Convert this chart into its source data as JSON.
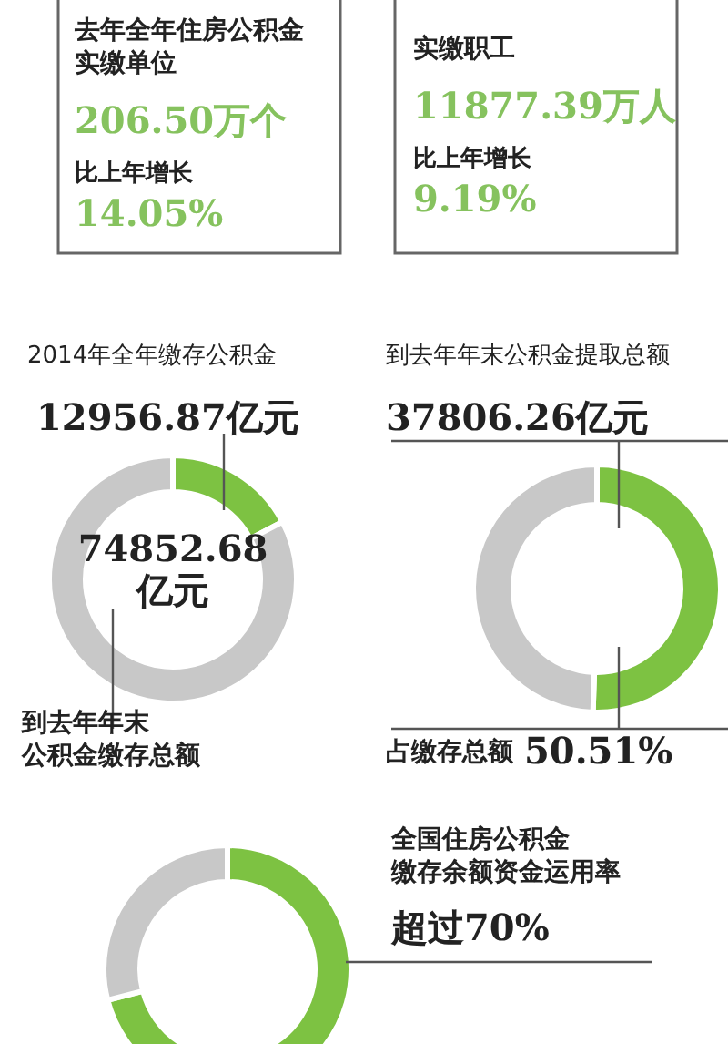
{
  "chart_data": [
    {
      "type": "other",
      "title": "去年全年住房公积金实缴单位",
      "annotations": [
        "206.50万个",
        "比上年增长",
        "14.05%"
      ]
    },
    {
      "type": "other",
      "title": "实缴职工",
      "annotations": [
        "11877.39万人",
        "比上年增长",
        "9.19%"
      ]
    },
    {
      "type": "donut",
      "title": "2014年全年缴存公积金",
      "categories": [
        null,
        null
      ],
      "values": [
        17.31,
        82.69
      ],
      "colors": [
        "#7dc242",
        "#c8c8c8"
      ],
      "annotations": [
        "12956.87亿元",
        "74852.68\n亿元",
        "到去年年末公积金缴存总额"
      ]
    },
    {
      "type": "donut",
      "title": "到去年年末公积金提取总额",
      "categories": [
        null,
        null
      ],
      "values": [
        50.51,
        49.49
      ],
      "colors": [
        "#7dc242",
        "#c8c8c8"
      ],
      "annotations": [
        "37806.26亿元",
        "占缴存总额",
        "50.51%"
      ]
    },
    {
      "type": "donut",
      "categories": [
        null,
        null
      ],
      "values": [
        71,
        29
      ],
      "colors": [
        "#7dc242",
        "#c8c8c8"
      ],
      "annotations": [
        "全国住房公积金缴存余额资金运用率",
        "超过70%"
      ]
    }
  ]
}
